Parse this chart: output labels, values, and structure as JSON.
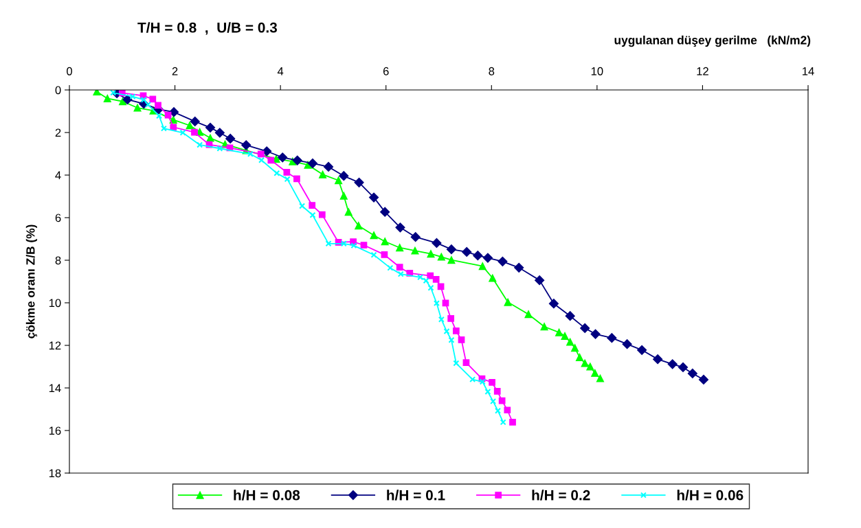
{
  "chart_data": {
    "type": "line",
    "title": "T/H = 0.8  ,  U/B = 0.3",
    "xlabel": "uygulanan düşey gerilme   (kN/m2)",
    "ylabel": "çökme oranı Z/B (%)",
    "xlim": [
      0,
      14
    ],
    "xticks": [
      0,
      2,
      4,
      6,
      8,
      10,
      12,
      14
    ],
    "ylim": [
      18,
      0
    ],
    "yticks": [
      0,
      2,
      4,
      6,
      8,
      10,
      12,
      14,
      16,
      18
    ],
    "grid": false,
    "legend": "bottom",
    "line_style": "solid",
    "series": [
      {
        "name": "h/H = 0.08",
        "color": "#00ff00",
        "marker": "triangle",
        "x": [
          0.52,
          0.72,
          1.01,
          1.29,
          1.59,
          1.97,
          2.28,
          2.47,
          2.67,
          2.95,
          3.35,
          3.92,
          4.23,
          4.52,
          4.8,
          5.1,
          5.2,
          5.29,
          5.48,
          5.77,
          5.98,
          6.26,
          6.55,
          6.85,
          7.05,
          7.24,
          7.83,
          8.02,
          8.31,
          8.7,
          9.0,
          9.28,
          9.39,
          9.49,
          9.58,
          9.67,
          9.77,
          9.87,
          9.96,
          10.06
        ],
        "values": [
          0.08,
          0.4,
          0.54,
          0.84,
          0.97,
          1.4,
          1.67,
          1.97,
          2.26,
          2.55,
          2.84,
          3.24,
          3.36,
          3.52,
          3.97,
          4.25,
          4.97,
          5.73,
          6.38,
          6.83,
          7.12,
          7.41,
          7.55,
          7.7,
          7.84,
          7.99,
          8.28,
          8.84,
          9.97,
          10.54,
          11.12,
          11.39,
          11.56,
          11.84,
          12.12,
          12.56,
          12.84,
          13.0,
          13.3,
          13.55
        ]
      },
      {
        "name": "h/H = 0.1",
        "color": "#000080",
        "marker": "diamond",
        "x": [
          0.9,
          1.1,
          1.41,
          1.69,
          1.98,
          2.38,
          2.67,
          2.85,
          3.05,
          3.35,
          3.74,
          4.04,
          4.32,
          4.61,
          4.91,
          5.2,
          5.49,
          5.77,
          5.98,
          6.27,
          6.56,
          6.96,
          7.24,
          7.53,
          7.74,
          7.93,
          8.21,
          8.52,
          8.91,
          9.18,
          9.49,
          9.77,
          9.97,
          10.28,
          10.57,
          10.85,
          11.15,
          11.43,
          11.63,
          11.81,
          12.02
        ],
        "values": [
          0.16,
          0.45,
          0.65,
          0.91,
          1.04,
          1.48,
          1.77,
          2.01,
          2.29,
          2.59,
          2.88,
          3.17,
          3.31,
          3.45,
          3.61,
          4.04,
          4.35,
          5.05,
          5.73,
          6.46,
          6.91,
          7.19,
          7.49,
          7.61,
          7.78,
          7.89,
          8.06,
          8.35,
          8.94,
          10.04,
          10.62,
          11.19,
          11.47,
          11.65,
          11.94,
          12.22,
          12.65,
          12.88,
          13.03,
          13.32,
          13.61
        ]
      },
      {
        "name": "h/H = 0.2",
        "color": "#ff00ff",
        "marker": "square",
        "x": [
          1.0,
          1.4,
          1.58,
          1.68,
          1.87,
          1.97,
          2.37,
          2.65,
          3.04,
          3.63,
          3.82,
          4.12,
          4.31,
          4.6,
          4.79,
          5.1,
          5.38,
          5.58,
          5.97,
          6.26,
          6.45,
          6.84,
          6.95,
          7.04,
          7.13,
          7.23,
          7.33,
          7.43,
          7.52,
          7.82,
          8.01,
          8.11,
          8.2,
          8.3,
          8.4
        ],
        "values": [
          0.14,
          0.27,
          0.43,
          0.72,
          1.18,
          1.75,
          1.99,
          2.57,
          2.72,
          3.01,
          3.3,
          3.87,
          4.17,
          5.42,
          5.86,
          7.16,
          7.13,
          7.29,
          7.74,
          8.33,
          8.61,
          8.73,
          8.9,
          9.24,
          10.01,
          10.74,
          11.32,
          11.74,
          12.81,
          13.57,
          13.74,
          14.16,
          14.6,
          15.04,
          15.61
        ]
      },
      {
        "name": "h/H = 0.06",
        "color": "#00ffff",
        "marker": "cross",
        "x": [
          0.83,
          1.2,
          1.41,
          1.49,
          1.7,
          1.79,
          2.15,
          2.47,
          2.85,
          3.43,
          3.64,
          3.93,
          4.13,
          4.41,
          4.61,
          4.91,
          5.2,
          5.39,
          5.77,
          6.08,
          6.28,
          6.65,
          6.76,
          6.85,
          6.96,
          7.05,
          7.15,
          7.24,
          7.33,
          7.64,
          7.83,
          7.93,
          8.03,
          8.12,
          8.22
        ],
        "values": [
          0.13,
          0.31,
          0.46,
          0.69,
          1.22,
          1.81,
          2.01,
          2.58,
          2.75,
          3.01,
          3.3,
          3.91,
          4.19,
          5.45,
          5.88,
          7.22,
          7.22,
          7.31,
          7.75,
          8.36,
          8.65,
          8.8,
          8.96,
          9.3,
          10.02,
          10.78,
          11.34,
          11.75,
          12.84,
          13.6,
          13.71,
          14.18,
          14.63,
          15.07,
          15.61
        ]
      }
    ]
  }
}
